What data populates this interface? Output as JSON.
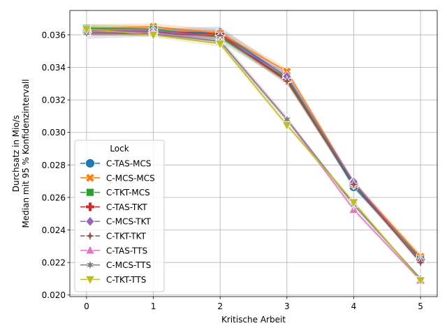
{
  "chart_data": {
    "type": "line",
    "xlabel": "Kritische Arbeit",
    "ylabel_lines": [
      "Durchsatz in Mio/s",
      "Median mit 95 % Konfidenzintervall"
    ],
    "xlim": [
      -0.25,
      5.25
    ],
    "ylim": [
      0.0199,
      0.0375
    ],
    "x_ticks": [
      0,
      1,
      2,
      3,
      4,
      5
    ],
    "x_tick_labels": [
      "0",
      "1",
      "2",
      "3",
      "4",
      "5"
    ],
    "y_ticks": [
      0.02,
      0.022,
      0.024,
      0.026,
      0.028,
      0.03,
      0.032,
      0.034,
      0.036
    ],
    "y_tick_labels": [
      "0.020",
      "0.022",
      "0.024",
      "0.026",
      "0.028",
      "0.030",
      "0.032",
      "0.034",
      "0.036"
    ],
    "grid": true,
    "legend": {
      "title": "Lock",
      "position": "lower-left"
    },
    "x": [
      0,
      1,
      2,
      3,
      4,
      5
    ],
    "series": [
      {
        "name": "C-TAS-MCS",
        "color": "#1f77b4",
        "marker": "circle",
        "values": [
          0.03625,
          0.03615,
          0.03615,
          0.0334,
          0.02665,
          0.02225
        ],
        "ci_low": [
          0.03605,
          0.036,
          0.03585,
          0.03315,
          0.0265,
          0.0221
        ],
        "ci_high": [
          0.0365,
          0.0364,
          0.0365,
          0.0337,
          0.0269,
          0.02245
        ]
      },
      {
        "name": "C-MCS-MCS",
        "color": "#ff7f0e",
        "marker": "x-filled",
        "values": [
          0.0364,
          0.0365,
          0.0361,
          0.03375,
          0.0269,
          0.02235
        ],
        "ci_low": [
          0.03615,
          0.0363,
          0.0359,
          0.03355,
          0.02675,
          0.02215
        ],
        "ci_high": [
          0.03665,
          0.0367,
          0.03635,
          0.03395,
          0.02705,
          0.02255
        ]
      },
      {
        "name": "C-TKT-MCS",
        "color": "#2ca02c",
        "marker": "square",
        "values": [
          0.0364,
          0.03635,
          0.03585,
          0.0333,
          0.02685,
          0.0222
        ],
        "ci_low": [
          0.03615,
          0.0362,
          0.03555,
          0.0331,
          0.0267,
          0.02205
        ],
        "ci_high": [
          0.03665,
          0.03655,
          0.03615,
          0.03355,
          0.027,
          0.0224
        ]
      },
      {
        "name": "C-TAS-TKT",
        "color": "#d62728",
        "marker": "plus-filled",
        "values": [
          0.0362,
          0.0362,
          0.03605,
          0.0332,
          0.0268,
          0.02215
        ],
        "ci_low": [
          0.036,
          0.03605,
          0.03585,
          0.033,
          0.02665,
          0.022
        ],
        "ci_high": [
          0.03645,
          0.0364,
          0.0363,
          0.03345,
          0.02695,
          0.0223
        ]
      },
      {
        "name": "C-MCS-TKT",
        "color": "#9467bd",
        "marker": "diamond",
        "values": [
          0.03625,
          0.03625,
          0.0359,
          0.03345,
          0.02695,
          0.0221
        ],
        "ci_low": [
          0.036,
          0.0361,
          0.0357,
          0.03325,
          0.0268,
          0.02195
        ],
        "ci_high": [
          0.0365,
          0.03645,
          0.0361,
          0.03365,
          0.0271,
          0.02225
        ]
      },
      {
        "name": "C-TKT-TKT",
        "color": "#8c564b",
        "marker": "star4",
        "values": [
          0.03615,
          0.0361,
          0.03595,
          0.03315,
          0.0268,
          0.022
        ],
        "ci_low": [
          0.03595,
          0.03595,
          0.03575,
          0.03295,
          0.02665,
          0.02185
        ],
        "ci_high": [
          0.0364,
          0.0363,
          0.03615,
          0.0334,
          0.02695,
          0.02215
        ]
      },
      {
        "name": "C-TAS-TTS",
        "color": "#e377c2",
        "marker": "triangle-up",
        "values": [
          0.0362,
          0.03615,
          0.0356,
          0.0308,
          0.02525,
          0.0209
        ],
        "ci_low": [
          0.03595,
          0.036,
          0.0354,
          0.03065,
          0.0251,
          0.0208
        ],
        "ci_high": [
          0.03645,
          0.03635,
          0.0358,
          0.031,
          0.0254,
          0.021
        ]
      },
      {
        "name": "C-MCS-TTS",
        "color": "#7f7f7f",
        "marker": "star6",
        "values": [
          0.0361,
          0.03605,
          0.0356,
          0.0308,
          0.02555,
          0.021
        ],
        "ci_low": [
          0.03575,
          0.0359,
          0.03545,
          0.03065,
          0.0254,
          0.0209
        ],
        "ci_high": [
          0.03635,
          0.03625,
          0.03575,
          0.03095,
          0.0257,
          0.0211
        ]
      },
      {
        "name": "C-TKT-TTS",
        "color": "#bcbd22",
        "marker": "triangle-down",
        "values": [
          0.03635,
          0.036,
          0.03545,
          0.03045,
          0.0257,
          0.0209
        ],
        "ci_low": [
          0.0361,
          0.03585,
          0.03525,
          0.0303,
          0.02555,
          0.0208
        ],
        "ci_high": [
          0.0366,
          0.0362,
          0.03565,
          0.0306,
          0.02585,
          0.021
        ]
      }
    ]
  }
}
